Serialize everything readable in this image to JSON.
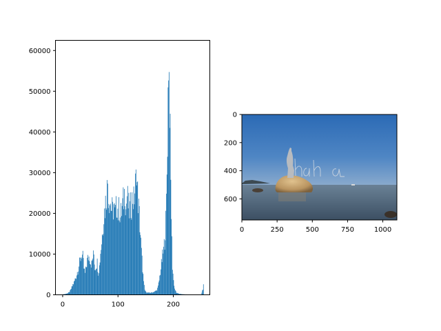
{
  "chart_data": [
    {
      "type": "bar",
      "kind": "histogram",
      "title": "",
      "xlabel": "",
      "ylabel": "",
      "xlim": [
        -13,
        266
      ],
      "ylim": [
        0,
        62500
      ],
      "x_ticks": [
        0,
        100,
        200
      ],
      "y_ticks": [
        0,
        10000,
        20000,
        30000,
        40000,
        50000,
        60000
      ],
      "color": "#1f77b4",
      "grid": false,
      "bins": [
        [
          0,
          120
        ],
        [
          4,
          200
        ],
        [
          8,
          350
        ],
        [
          12,
          700
        ],
        [
          14,
          1200
        ],
        [
          16,
          1800
        ],
        [
          18,
          2500
        ],
        [
          20,
          3000
        ],
        [
          22,
          3800
        ],
        [
          24,
          4500
        ],
        [
          26,
          5600
        ],
        [
          28,
          6500
        ],
        [
          30,
          7800
        ],
        [
          32,
          9000
        ],
        [
          34,
          10000
        ],
        [
          36,
          9200
        ],
        [
          38,
          6500
        ],
        [
          40,
          5200
        ],
        [
          42,
          6800
        ],
        [
          44,
          8500
        ],
        [
          46,
          9200
        ],
        [
          48,
          9500
        ],
        [
          50,
          8000
        ],
        [
          52,
          7500
        ],
        [
          54,
          9200
        ],
        [
          56,
          10000
        ],
        [
          58,
          6500
        ],
        [
          60,
          7200
        ],
        [
          62,
          8000
        ],
        [
          64,
          5500
        ],
        [
          66,
          7000
        ],
        [
          68,
          10500
        ],
        [
          70,
          13000
        ],
        [
          72,
          16500
        ],
        [
          74,
          19500
        ],
        [
          76,
          21500
        ],
        [
          78,
          24000
        ],
        [
          80,
          26000
        ],
        [
          81,
          28000
        ],
        [
          82,
          25000
        ],
        [
          84,
          23500
        ],
        [
          86,
          22500
        ],
        [
          88,
          21000
        ],
        [
          90,
          20500
        ],
        [
          92,
          22000
        ],
        [
          94,
          19500
        ],
        [
          96,
          21000
        ],
        [
          98,
          22500
        ],
        [
          100,
          20000
        ],
        [
          102,
          21500
        ],
        [
          104,
          19000
        ],
        [
          106,
          20500
        ],
        [
          108,
          22000
        ],
        [
          110,
          23500
        ],
        [
          112,
          26000
        ],
        [
          114,
          21000
        ],
        [
          116,
          24500
        ],
        [
          118,
          22000
        ],
        [
          120,
          20500
        ],
        [
          122,
          21500
        ],
        [
          124,
          22500
        ],
        [
          126,
          24000
        ],
        [
          128,
          23000
        ],
        [
          130,
          25500
        ],
        [
          132,
          28000
        ],
        [
          133,
          32500
        ],
        [
          134,
          27000
        ],
        [
          136,
          23000
        ],
        [
          138,
          19500
        ],
        [
          140,
          15000
        ],
        [
          142,
          10500
        ],
        [
          144,
          6500
        ],
        [
          146,
          3000
        ],
        [
          148,
          1200
        ],
        [
          150,
          700
        ],
        [
          154,
          500
        ],
        [
          158,
          500
        ],
        [
          162,
          600
        ],
        [
          166,
          800
        ],
        [
          170,
          1200
        ],
        [
          172,
          2000
        ],
        [
          174,
          3500
        ],
        [
          176,
          5500
        ],
        [
          178,
          7500
        ],
        [
          180,
          9500
        ],
        [
          182,
          11000
        ],
        [
          184,
          13500
        ],
        [
          186,
          18000
        ],
        [
          187,
          23000
        ],
        [
          188,
          30000
        ],
        [
          189,
          39000
        ],
        [
          190,
          49000
        ],
        [
          191,
          59500
        ],
        [
          192,
          53500
        ],
        [
          193,
          48000
        ],
        [
          194,
          38000
        ],
        [
          195,
          27000
        ],
        [
          196,
          20000
        ],
        [
          197,
          13000
        ],
        [
          198,
          7000
        ],
        [
          200,
          3500
        ],
        [
          202,
          1500
        ],
        [
          205,
          500
        ],
        [
          210,
          250
        ],
        [
          215,
          150
        ],
        [
          220,
          100
        ],
        [
          225,
          80
        ],
        [
          230,
          60
        ],
        [
          235,
          50
        ],
        [
          240,
          40
        ],
        [
          245,
          40
        ],
        [
          250,
          60
        ],
        [
          253,
          1500
        ],
        [
          254,
          2200
        ],
        [
          255,
          0
        ]
      ]
    },
    {
      "type": "image",
      "title": "",
      "xlabel": "",
      "ylabel": "",
      "x_ticks": [
        0,
        250,
        500,
        750,
        1000
      ],
      "y_ticks": [
        0,
        200,
        400,
        600
      ],
      "xlim": [
        0,
        1100
      ],
      "ylim": [
        750,
        0
      ],
      "image_annotation_text": "haha",
      "colors": {
        "sky_top": "#2f6fb8",
        "sky_bottom": "#7fa3cc",
        "sea": "#546c84",
        "sea_near": "#3e5267",
        "rock": "#c9a777",
        "statue": "#b8bcc0"
      }
    }
  ]
}
